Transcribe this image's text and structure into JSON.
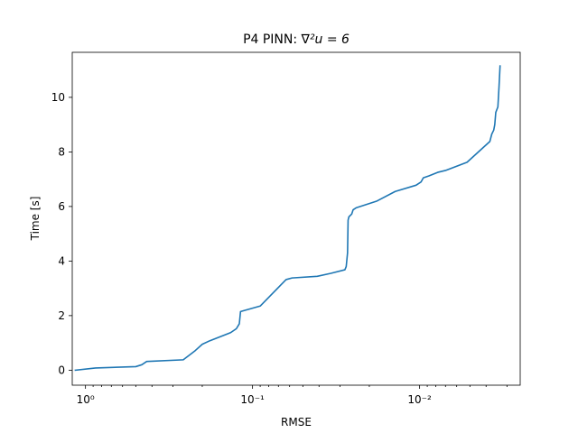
{
  "chart_data": {
    "type": "line",
    "title_main": "P4 PINN: ",
    "title_math": "∇²u = 6",
    "xlabel": "RMSE",
    "ylabel": "Time [s]",
    "xscale": "log",
    "x_inverted": true,
    "xlim": [
      1.2,
      0.0025
    ],
    "ylim": [
      -0.55,
      11.65
    ],
    "grid": false,
    "legend": "none",
    "x_ticks": [
      {
        "value": 1,
        "label": "10⁰"
      },
      {
        "value": 0.1,
        "label": "10⁻¹"
      },
      {
        "value": 0.01,
        "label": "10⁻²"
      }
    ],
    "y_ticks": [
      0,
      2,
      4,
      6,
      8,
      10
    ],
    "colors": {
      "line": "#1f77b4"
    },
    "series": [
      {
        "x": [
          1.15,
          0.87,
          0.5,
          0.46,
          0.43,
          0.26,
          0.22,
          0.2,
          0.18,
          0.135,
          0.125,
          0.12,
          0.118,
          0.09,
          0.063,
          0.058,
          0.041,
          0.034,
          0.028,
          0.0275,
          0.027,
          0.0268,
          0.0265,
          0.0255,
          0.025,
          0.024,
          0.018,
          0.014,
          0.0105,
          0.0098,
          0.0095,
          0.0088,
          0.0078,
          0.007,
          0.0052,
          0.0038,
          0.0037,
          0.0036,
          0.00355,
          0.0035,
          0.0034,
          0.00335,
          0.0033
        ],
        "y": [
          0.0,
          0.08,
          0.13,
          0.2,
          0.32,
          0.38,
          0.72,
          0.95,
          1.08,
          1.38,
          1.52,
          1.7,
          2.15,
          2.35,
          3.32,
          3.38,
          3.44,
          3.55,
          3.68,
          3.8,
          4.3,
          5.5,
          5.62,
          5.72,
          5.88,
          5.95,
          6.2,
          6.55,
          6.78,
          6.9,
          7.05,
          7.12,
          7.25,
          7.32,
          7.62,
          8.38,
          8.65,
          8.8,
          9.0,
          9.45,
          9.65,
          10.35,
          11.15
        ]
      }
    ]
  }
}
